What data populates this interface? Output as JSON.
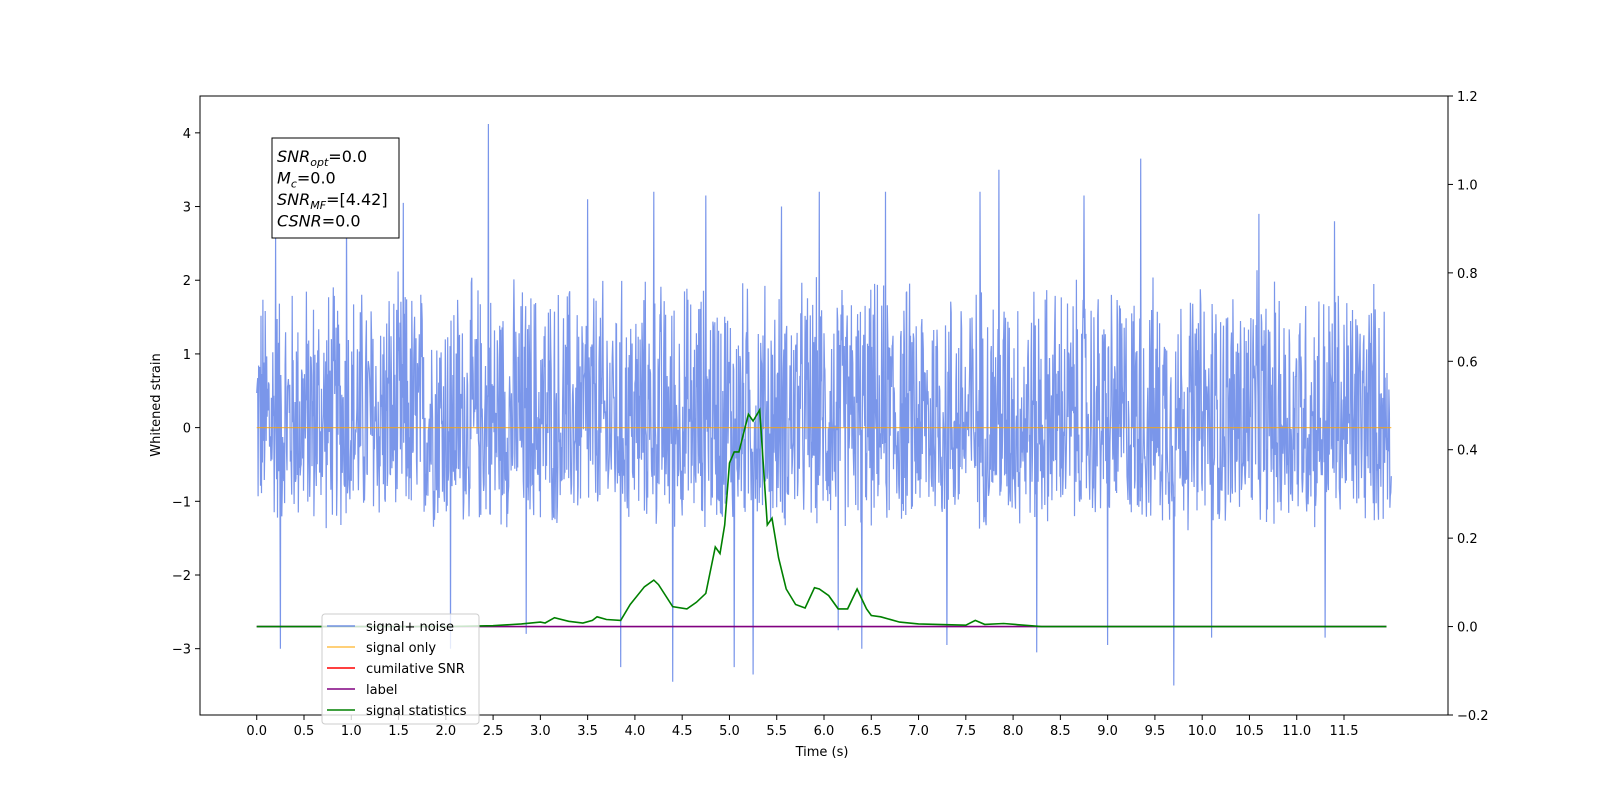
{
  "chart_data": {
    "type": "line",
    "xlabel": "Time (s)",
    "ylabel": "Whitened strain",
    "xlim": [
      -0.6,
      12.6
    ],
    "ylim": [
      -3.9,
      4.5
    ],
    "y2lim": [
      -0.2,
      1.2
    ],
    "x_ticks": [
      0.0,
      0.5,
      1.0,
      1.5,
      2.0,
      2.5,
      3.0,
      3.5,
      4.0,
      4.5,
      5.0,
      5.5,
      6.0,
      6.5,
      7.0,
      7.5,
      8.0,
      8.5,
      9.0,
      9.5,
      10.0,
      10.5,
      11.0,
      11.5
    ],
    "x_tick_labels": [
      "0.0",
      "0.5",
      "1.0",
      "1.5",
      "2.0",
      "2.5",
      "3.0",
      "3.5",
      "4.0",
      "4.5",
      "5.0",
      "5.5",
      "6.0",
      "6.5",
      "7.0",
      "7.5",
      "8.0",
      "8.5",
      "9.0",
      "9.5",
      "10.0",
      "10.5",
      "11.0",
      "11.5"
    ],
    "y_ticks": [
      -3,
      -2,
      -1,
      0,
      1,
      2,
      3,
      4
    ],
    "y_tick_labels": [
      "−3",
      "−2",
      "−1",
      "0",
      "1",
      "2",
      "3",
      "4"
    ],
    "y2_ticks": [
      -0.2,
      0.0,
      0.2,
      0.4,
      0.6,
      0.8,
      1.0,
      1.2
    ],
    "y2_tick_labels": [
      "−0.2",
      "0.0",
      "0.2",
      "0.4",
      "0.6",
      "0.8",
      "1.0",
      "1.2"
    ],
    "grid": false,
    "legend_position": "lower-left",
    "annotation": {
      "lines": [
        {
          "sym": "SNR",
          "sub": "opt",
          "val": "=0.0"
        },
        {
          "sym": "M",
          "sub": "c",
          "val": "=0.0"
        },
        {
          "sym": "SNR",
          "sub": "MF",
          "val": "=[4.42]"
        },
        {
          "sym": "CSNR",
          "sub": "",
          "val": "=0.0"
        }
      ]
    },
    "series": [
      {
        "name": "signal+ noise",
        "axis": "left",
        "color": "#4169e1",
        "style": "noise envelope",
        "x_range": [
          0.0,
          12.0
        ],
        "typical_range": [
          -1.5,
          2.2
        ],
        "spikes": [
          {
            "x": 0.2,
            "y": 2.6
          },
          {
            "x": 0.25,
            "y": -3.0
          },
          {
            "x": 0.95,
            "y": 2.95
          },
          {
            "x": 1.55,
            "y": 3.05
          },
          {
            "x": 2.05,
            "y": -3.0
          },
          {
            "x": 2.45,
            "y": 4.12
          },
          {
            "x": 2.85,
            "y": -2.8
          },
          {
            "x": 3.5,
            "y": 3.1
          },
          {
            "x": 3.85,
            "y": -3.25
          },
          {
            "x": 4.2,
            "y": 3.2
          },
          {
            "x": 4.4,
            "y": -3.45
          },
          {
            "x": 4.75,
            "y": 3.15
          },
          {
            "x": 5.05,
            "y": -3.25
          },
          {
            "x": 5.25,
            "y": -3.35
          },
          {
            "x": 5.55,
            "y": 3.0
          },
          {
            "x": 5.95,
            "y": 3.2
          },
          {
            "x": 6.15,
            "y": -2.75
          },
          {
            "x": 6.4,
            "y": -3.0
          },
          {
            "x": 6.65,
            "y": 3.2
          },
          {
            "x": 7.3,
            "y": -2.95
          },
          {
            "x": 7.65,
            "y": 3.2
          },
          {
            "x": 7.85,
            "y": 3.5
          },
          {
            "x": 8.25,
            "y": -3.05
          },
          {
            "x": 8.75,
            "y": 3.15
          },
          {
            "x": 9.0,
            "y": -2.95
          },
          {
            "x": 9.35,
            "y": 3.65
          },
          {
            "x": 9.7,
            "y": -3.5
          },
          {
            "x": 10.1,
            "y": -2.85
          },
          {
            "x": 10.6,
            "y": 2.9
          },
          {
            "x": 11.3,
            "y": -2.85
          },
          {
            "x": 11.4,
            "y": 2.8
          }
        ]
      },
      {
        "name": "signal only",
        "axis": "left",
        "color": "#ffa500",
        "x": [
          0.0,
          12.0
        ],
        "values": [
          0.0,
          0.0
        ]
      },
      {
        "name": "cumilative SNR",
        "axis": "right",
        "color": "#ff0000",
        "x": [],
        "values": []
      },
      {
        "name": "label",
        "axis": "right",
        "color": "#800080",
        "x": [
          0.0,
          11.95
        ],
        "values": [
          0.0,
          0.0
        ]
      },
      {
        "name": "signal statistics",
        "axis": "right",
        "color": "#008000",
        "x": [
          0.0,
          2.0,
          2.5,
          2.8,
          3.0,
          3.05,
          3.15,
          3.3,
          3.45,
          3.55,
          3.6,
          3.7,
          3.85,
          3.95,
          4.1,
          4.2,
          4.25,
          4.4,
          4.55,
          4.65,
          4.75,
          4.85,
          4.9,
          4.95,
          5.0,
          5.05,
          5.1,
          5.2,
          5.25,
          5.32,
          5.4,
          5.45,
          5.52,
          5.6,
          5.7,
          5.8,
          5.9,
          5.95,
          6.05,
          6.15,
          6.25,
          6.35,
          6.45,
          6.5,
          6.6,
          6.8,
          7.0,
          7.5,
          7.6,
          7.7,
          7.9,
          8.3,
          8.5,
          11.95
        ],
        "values": [
          0.0,
          0.0,
          0.002,
          0.006,
          0.01,
          0.008,
          0.02,
          0.012,
          0.008,
          0.014,
          0.022,
          0.016,
          0.014,
          0.05,
          0.09,
          0.105,
          0.095,
          0.045,
          0.04,
          0.055,
          0.075,
          0.18,
          0.165,
          0.23,
          0.37,
          0.395,
          0.395,
          0.48,
          0.465,
          0.49,
          0.23,
          0.245,
          0.155,
          0.085,
          0.05,
          0.042,
          0.088,
          0.085,
          0.07,
          0.04,
          0.04,
          0.085,
          0.04,
          0.025,
          0.022,
          0.01,
          0.006,
          0.003,
          0.014,
          0.005,
          0.007,
          0.0,
          0.0,
          0.0
        ]
      }
    ]
  }
}
